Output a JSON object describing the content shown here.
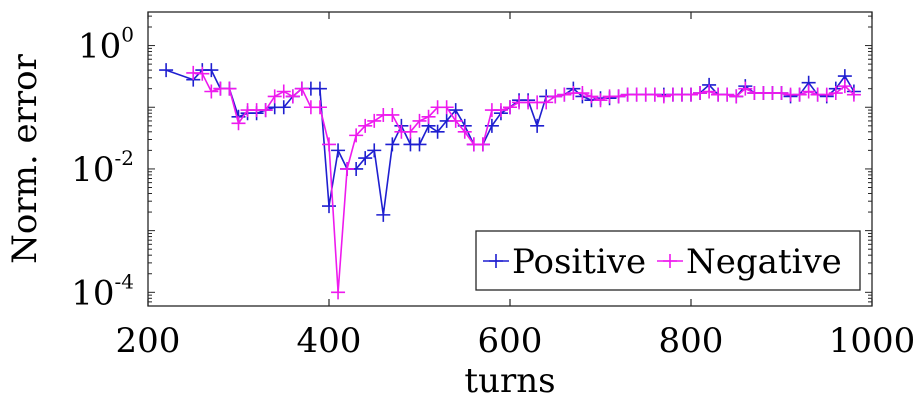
{
  "chart_data": {
    "type": "line",
    "xlabel": "turns",
    "ylabel": "Norm. error",
    "xlim": [
      200,
      1000
    ],
    "ylim": [
      6e-05,
      3.5
    ],
    "yscale": "log",
    "grid": false,
    "legend_position": "bottom-right",
    "x_ticks": [
      200,
      400,
      600,
      800,
      1000
    ],
    "x_tick_labels": [
      "200",
      "400",
      "600",
      "800",
      "1000"
    ],
    "y_ticks": [
      {
        "value": 1,
        "base": "10",
        "exp": "0"
      },
      {
        "value": 0.01,
        "base": "10",
        "exp": "-2"
      },
      {
        "value": 0.0001,
        "base": "10",
        "exp": "-4"
      }
    ],
    "series": [
      {
        "name": "Positive",
        "color": "#1f1fd0",
        "marker": "plus",
        "x": [
          220,
          250,
          260,
          270,
          280,
          290,
          300,
          310,
          320,
          330,
          340,
          350,
          360,
          370,
          380,
          390,
          400,
          410,
          420,
          430,
          440,
          450,
          460,
          470,
          480,
          490,
          500,
          510,
          520,
          530,
          540,
          550,
          560,
          570,
          580,
          590,
          600,
          610,
          620,
          630,
          640,
          650,
          660,
          670,
          680,
          690,
          700,
          710,
          720,
          730,
          740,
          750,
          760,
          770,
          780,
          790,
          800,
          810,
          820,
          830,
          840,
          850,
          860,
          870,
          880,
          890,
          900,
          910,
          920,
          930,
          940,
          950,
          960,
          970,
          980
        ],
        "y": [
          0.4,
          0.28,
          0.4,
          0.4,
          0.2,
          0.2,
          0.07,
          0.08,
          0.08,
          0.09,
          0.1,
          0.1,
          0.15,
          0.2,
          0.2,
          0.2,
          0.0025,
          0.02,
          0.01,
          0.01,
          0.015,
          0.02,
          0.0018,
          0.025,
          0.05,
          0.025,
          0.025,
          0.05,
          0.04,
          0.06,
          0.09,
          0.05,
          0.025,
          0.025,
          0.05,
          0.08,
          0.1,
          0.13,
          0.13,
          0.05,
          0.15,
          0.15,
          0.16,
          0.2,
          0.15,
          0.13,
          0.14,
          0.14,
          0.15,
          0.16,
          0.16,
          0.16,
          0.16,
          0.16,
          0.16,
          0.16,
          0.16,
          0.17,
          0.23,
          0.16,
          0.16,
          0.15,
          0.22,
          0.17,
          0.17,
          0.17,
          0.17,
          0.15,
          0.16,
          0.25,
          0.16,
          0.15,
          0.2,
          0.32,
          0.18
        ]
      },
      {
        "name": "Negative",
        "color": "#ee1aee",
        "marker": "plus",
        "x": [
          250,
          260,
          270,
          280,
          290,
          300,
          310,
          320,
          330,
          340,
          350,
          360,
          370,
          380,
          390,
          400,
          410,
          420,
          430,
          440,
          450,
          460,
          470,
          480,
          490,
          500,
          510,
          520,
          530,
          540,
          550,
          560,
          570,
          580,
          590,
          600,
          610,
          620,
          630,
          640,
          650,
          660,
          670,
          680,
          690,
          700,
          710,
          720,
          730,
          740,
          750,
          760,
          770,
          780,
          790,
          800,
          810,
          820,
          830,
          840,
          850,
          860,
          870,
          880,
          890,
          900,
          910,
          920,
          930,
          940,
          950,
          960,
          970,
          980
        ],
        "y": [
          0.36,
          0.35,
          0.18,
          0.2,
          0.2,
          0.055,
          0.09,
          0.09,
          0.09,
          0.15,
          0.18,
          0.15,
          0.2,
          0.1,
          0.1,
          0.025,
          0.0001,
          0.01,
          0.035,
          0.05,
          0.06,
          0.075,
          0.075,
          0.04,
          0.04,
          0.06,
          0.07,
          0.1,
          0.1,
          0.06,
          0.04,
          0.025,
          0.025,
          0.09,
          0.09,
          0.1,
          0.12,
          0.12,
          0.12,
          0.12,
          0.15,
          0.16,
          0.17,
          0.17,
          0.15,
          0.13,
          0.15,
          0.15,
          0.16,
          0.16,
          0.16,
          0.16,
          0.15,
          0.16,
          0.16,
          0.16,
          0.17,
          0.18,
          0.16,
          0.16,
          0.15,
          0.2,
          0.17,
          0.17,
          0.17,
          0.17,
          0.16,
          0.16,
          0.18,
          0.16,
          0.16,
          0.17,
          0.22,
          0.16
        ]
      }
    ]
  }
}
